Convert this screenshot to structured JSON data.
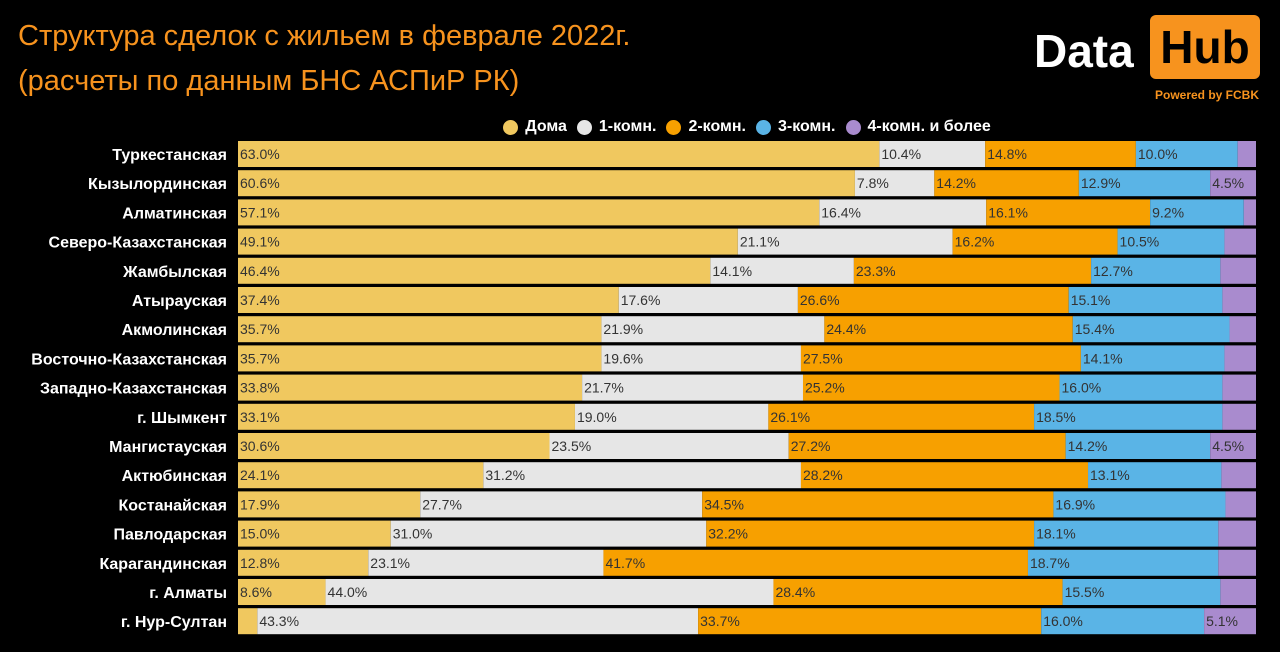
{
  "title_line1": "Структура сделок с жильем в феврале 2022г.",
  "title_line2": "(расчеты по данным БНС АСПиР РК)",
  "logo": {
    "data_text": "Data",
    "hub_text": "Hub",
    "powered_text": "Powered by FCBK"
  },
  "colors": {
    "background": "#000000",
    "accent": "#f7931e"
  },
  "chart_data": {
    "type": "bar",
    "orientation": "horizontal",
    "stacked": true,
    "percent": true,
    "xlim": [
      0,
      100
    ],
    "legend_position": "top",
    "categories": [
      "Туркестанская",
      "Кызылординская",
      "Алматинская",
      "Северо-Казахстанская",
      "Жамбылская",
      "Атырауская",
      "Акмолинская",
      "Восточно-Казахстанская",
      "Западно-Казахстанская",
      "г. Шымкент",
      "Мангистауская",
      "Актюбинская",
      "Костанайская",
      "Павлодарская",
      "Карагандинская",
      "г. Алматы",
      "г. Нур-Султан"
    ],
    "series": [
      {
        "name": "Дома",
        "color": "#f0c85f",
        "values": [
          63.0,
          60.6,
          57.1,
          49.1,
          46.4,
          37.4,
          35.7,
          35.7,
          33.8,
          33.1,
          30.6,
          24.1,
          17.9,
          15.0,
          12.8,
          8.6,
          1.9
        ],
        "labels": [
          "63.0%",
          "60.6%",
          "57.1%",
          "49.1%",
          "46.4%",
          "37.4%",
          "35.7%",
          "35.7%",
          "33.8%",
          "33.1%",
          "30.6%",
          "24.1%",
          "17.9%",
          "15.0%",
          "12.8%",
          "8.6%",
          ""
        ]
      },
      {
        "name": "1-комн.",
        "color": "#e6e6e6",
        "values": [
          10.4,
          7.8,
          16.4,
          21.1,
          14.1,
          17.6,
          21.9,
          19.6,
          21.7,
          19.0,
          23.5,
          31.2,
          27.7,
          31.0,
          23.1,
          44.0,
          43.3
        ],
        "labels": [
          "10.4%",
          "7.8%",
          "16.4%",
          "21.1%",
          "14.1%",
          "17.6%",
          "21.9%",
          "19.6%",
          "21.7%",
          "19.0%",
          "23.5%",
          "31.2%",
          "27.7%",
          "31.0%",
          "23.1%",
          "44.0%",
          "43.3%"
        ]
      },
      {
        "name": "2-комн.",
        "color": "#f7a000",
        "values": [
          14.8,
          14.2,
          16.1,
          16.2,
          23.3,
          26.6,
          24.4,
          27.5,
          25.2,
          26.1,
          27.2,
          28.2,
          34.5,
          32.2,
          41.7,
          28.4,
          33.7
        ],
        "labels": [
          "14.8%",
          "14.2%",
          "16.1%",
          "16.2%",
          "23.3%",
          "26.6%",
          "24.4%",
          "27.5%",
          "25.2%",
          "26.1%",
          "27.2%",
          "28.2%",
          "34.5%",
          "32.2%",
          "41.7%",
          "28.4%",
          "33.7%"
        ]
      },
      {
        "name": "3-комн.",
        "color": "#5ab4e6",
        "values": [
          10.0,
          12.9,
          9.2,
          10.5,
          12.7,
          15.1,
          15.4,
          14.1,
          16.0,
          18.5,
          14.2,
          13.1,
          16.9,
          18.1,
          18.7,
          15.5,
          16.0
        ],
        "labels": [
          "10.0%",
          "12.9%",
          "9.2%",
          "10.5%",
          "12.7%",
          "15.1%",
          "15.4%",
          "14.1%",
          "16.0%",
          "18.5%",
          "14.2%",
          "13.1%",
          "16.9%",
          "18.1%",
          "18.7%",
          "15.5%",
          "16.0%"
        ]
      },
      {
        "name": "4-комн. и более",
        "color": "#a98bce",
        "values": [
          1.8,
          4.5,
          1.2,
          3.1,
          3.5,
          3.3,
          2.6,
          3.1,
          3.3,
          3.3,
          4.5,
          3.4,
          3.0,
          3.7,
          3.7,
          3.5,
          5.1
        ],
        "labels": [
          "",
          "4.5%",
          "",
          "",
          "",
          "",
          "",
          "",
          "",
          "",
          "4.5%",
          "",
          "",
          "",
          "",
          "",
          "5.1%"
        ]
      }
    ]
  }
}
